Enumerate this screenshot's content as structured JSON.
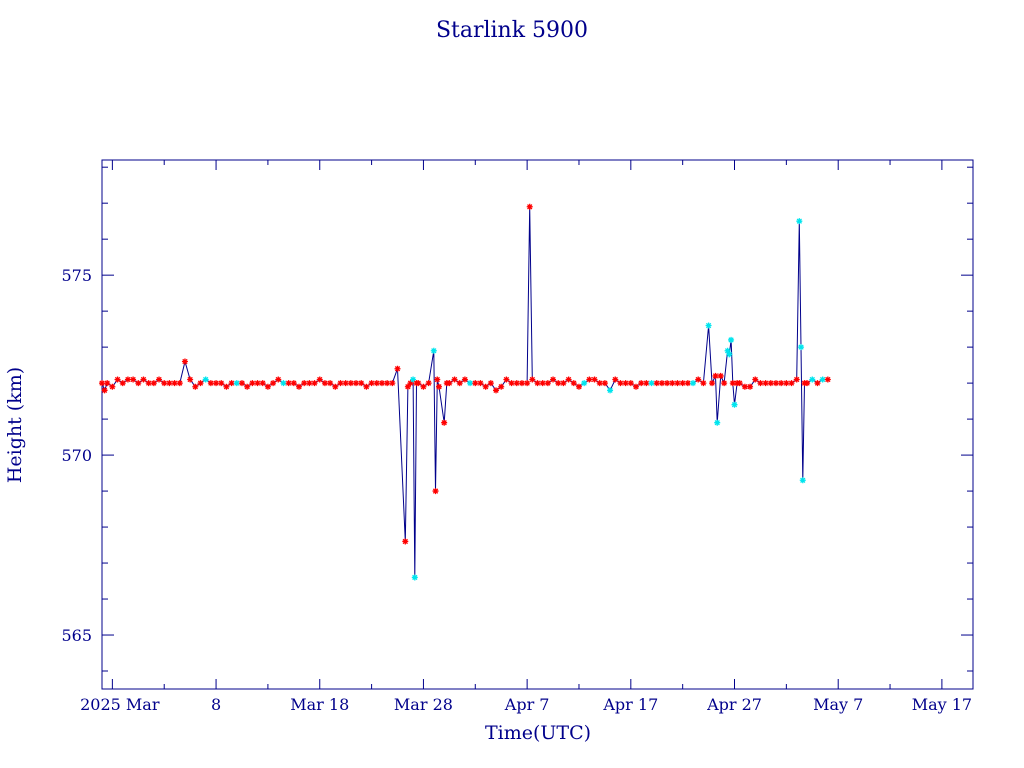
{
  "chart_data": {
    "type": "line",
    "title": "Starlink 5900",
    "xlabel": "Time(UTC)",
    "ylabel": "Height (km)",
    "xlim": [
      "2025-02-25",
      "2025-05-20"
    ],
    "ylim": [
      563.5,
      578.2
    ],
    "x_ticks": [
      {
        "x": "2025-03-01",
        "label": "2025 Mar  "
      },
      {
        "x": "2025-03-08",
        "label": "8"
      },
      {
        "x": "2025-03-18",
        "label": "Mar 18"
      },
      {
        "x": "2025-03-28",
        "label": "Mar 28"
      },
      {
        "x": "2025-04-07",
        "label": "Apr  7"
      },
      {
        "x": "2025-04-17",
        "label": "Apr 17"
      },
      {
        "x": "2025-04-27",
        "label": "Apr 27"
      },
      {
        "x": "2025-05-07",
        "label": "May  7"
      },
      {
        "x": "2025-05-17",
        "label": "May 17"
      }
    ],
    "y_ticks": [
      565,
      570,
      575
    ],
    "grid": false,
    "line_color": "#00008b",
    "marker_colors": {
      "red": "#ff0000",
      "cyan": "#00e5ee"
    },
    "series": [
      {
        "values": [
          {
            "x": "2025-02-25T00:00",
            "y": 572.0,
            "m": "red"
          },
          {
            "x": "2025-02-25T06:00",
            "y": 571.8,
            "m": "red"
          },
          {
            "x": "2025-02-25T12:00",
            "y": 572.0,
            "m": "red"
          },
          {
            "x": "2025-02-26T00:00",
            "y": 571.9,
            "m": "red"
          },
          {
            "x": "2025-02-26T12:00",
            "y": 572.1,
            "m": "red"
          },
          {
            "x": "2025-02-27T00:00",
            "y": 572.0,
            "m": "red"
          },
          {
            "x": "2025-02-27T12:00",
            "y": 572.1,
            "m": "red"
          },
          {
            "x": "2025-02-28T00:00",
            "y": 572.1,
            "m": "red"
          },
          {
            "x": "2025-02-28T12:00",
            "y": 572.0,
            "m": "red"
          },
          {
            "x": "2025-03-01T00:00",
            "y": 572.1,
            "m": "red"
          },
          {
            "x": "2025-03-01T12:00",
            "y": 572.0,
            "m": "red"
          },
          {
            "x": "2025-03-02T00:00",
            "y": 572.0,
            "m": "red"
          },
          {
            "x": "2025-03-02T12:00",
            "y": 572.1,
            "m": "red"
          },
          {
            "x": "2025-03-03T00:00",
            "y": 572.0,
            "m": "red"
          },
          {
            "x": "2025-03-03T12:00",
            "y": 572.0,
            "m": "red"
          },
          {
            "x": "2025-03-04T00:00",
            "y": 572.0,
            "m": "red"
          },
          {
            "x": "2025-03-04T12:00",
            "y": 572.0,
            "m": "red"
          },
          {
            "x": "2025-03-05T00:00",
            "y": 572.6,
            "m": "red"
          },
          {
            "x": "2025-03-05T12:00",
            "y": 572.1,
            "m": "red"
          },
          {
            "x": "2025-03-06T00:00",
            "y": 571.9,
            "m": "red"
          },
          {
            "x": "2025-03-06T12:00",
            "y": 572.0,
            "m": "red"
          },
          {
            "x": "2025-03-07T00:00",
            "y": 572.1,
            "m": "cyan"
          },
          {
            "x": "2025-03-07T12:00",
            "y": 572.0,
            "m": "red"
          },
          {
            "x": "2025-03-08T00:00",
            "y": 572.0,
            "m": "red"
          },
          {
            "x": "2025-03-08T12:00",
            "y": 572.0,
            "m": "red"
          },
          {
            "x": "2025-03-09T00:00",
            "y": 571.9,
            "m": "red"
          },
          {
            "x": "2025-03-09T12:00",
            "y": 572.0,
            "m": "red"
          },
          {
            "x": "2025-03-10T00:00",
            "y": 572.0,
            "m": "cyan"
          },
          {
            "x": "2025-03-10T12:00",
            "y": 572.0,
            "m": "red"
          },
          {
            "x": "2025-03-11T00:00",
            "y": 571.9,
            "m": "red"
          },
          {
            "x": "2025-03-11T12:00",
            "y": 572.0,
            "m": "red"
          },
          {
            "x": "2025-03-12T00:00",
            "y": 572.0,
            "m": "red"
          },
          {
            "x": "2025-03-12T12:00",
            "y": 572.0,
            "m": "red"
          },
          {
            "x": "2025-03-13T00:00",
            "y": 571.9,
            "m": "red"
          },
          {
            "x": "2025-03-13T12:00",
            "y": 572.0,
            "m": "red"
          },
          {
            "x": "2025-03-14T00:00",
            "y": 572.1,
            "m": "red"
          },
          {
            "x": "2025-03-14T12:00",
            "y": 572.0,
            "m": "cyan"
          },
          {
            "x": "2025-03-15T00:00",
            "y": 572.0,
            "m": "red"
          },
          {
            "x": "2025-03-15T12:00",
            "y": 572.0,
            "m": "red"
          },
          {
            "x": "2025-03-16T00:00",
            "y": 571.9,
            "m": "red"
          },
          {
            "x": "2025-03-16T12:00",
            "y": 572.0,
            "m": "red"
          },
          {
            "x": "2025-03-17T00:00",
            "y": 572.0,
            "m": "red"
          },
          {
            "x": "2025-03-17T12:00",
            "y": 572.0,
            "m": "red"
          },
          {
            "x": "2025-03-18T00:00",
            "y": 572.1,
            "m": "red"
          },
          {
            "x": "2025-03-18T12:00",
            "y": 572.0,
            "m": "red"
          },
          {
            "x": "2025-03-19T00:00",
            "y": 572.0,
            "m": "red"
          },
          {
            "x": "2025-03-19T12:00",
            "y": 571.9,
            "m": "red"
          },
          {
            "x": "2025-03-20T00:00",
            "y": 572.0,
            "m": "red"
          },
          {
            "x": "2025-03-20T12:00",
            "y": 572.0,
            "m": "red"
          },
          {
            "x": "2025-03-21T00:00",
            "y": 572.0,
            "m": "red"
          },
          {
            "x": "2025-03-21T12:00",
            "y": 572.0,
            "m": "red"
          },
          {
            "x": "2025-03-22T00:00",
            "y": 572.0,
            "m": "red"
          },
          {
            "x": "2025-03-22T12:00",
            "y": 571.9,
            "m": "red"
          },
          {
            "x": "2025-03-23T00:00",
            "y": 572.0,
            "m": "red"
          },
          {
            "x": "2025-03-23T12:00",
            "y": 572.0,
            "m": "red"
          },
          {
            "x": "2025-03-24T00:00",
            "y": 572.0,
            "m": "red"
          },
          {
            "x": "2025-03-24T12:00",
            "y": 572.0,
            "m": "red"
          },
          {
            "x": "2025-03-25T00:00",
            "y": 572.0,
            "m": "red"
          },
          {
            "x": "2025-03-25T12:00",
            "y": 572.4,
            "m": "red"
          },
          {
            "x": "2025-03-26T06:00",
            "y": 567.6,
            "m": "red"
          },
          {
            "x": "2025-03-26T12:00",
            "y": 571.9,
            "m": "red"
          },
          {
            "x": "2025-03-26T18:00",
            "y": 572.0,
            "m": "red"
          },
          {
            "x": "2025-03-27T00:00",
            "y": 572.1,
            "m": "cyan"
          },
          {
            "x": "2025-03-27T04:00",
            "y": 566.6,
            "m": "cyan"
          },
          {
            "x": "2025-03-27T08:00",
            "y": 572.0,
            "m": "red"
          },
          {
            "x": "2025-03-27T12:00",
            "y": 572.0,
            "m": "red"
          },
          {
            "x": "2025-03-28T00:00",
            "y": 571.9,
            "m": "red"
          },
          {
            "x": "2025-03-28T12:00",
            "y": 572.0,
            "m": "red"
          },
          {
            "x": "2025-03-29T00:00",
            "y": 572.9,
            "m": "cyan"
          },
          {
            "x": "2025-03-29T04:00",
            "y": 569.0,
            "m": "red"
          },
          {
            "x": "2025-03-29T08:00",
            "y": 572.1,
            "m": "red"
          },
          {
            "x": "2025-03-29T12:00",
            "y": 571.9,
            "m": "red"
          },
          {
            "x": "2025-03-30T00:00",
            "y": 570.9,
            "m": "red"
          },
          {
            "x": "2025-03-30T06:00",
            "y": 572.0,
            "m": "red"
          },
          {
            "x": "2025-03-30T12:00",
            "y": 572.0,
            "m": "red"
          },
          {
            "x": "2025-03-31T00:00",
            "y": 572.1,
            "m": "red"
          },
          {
            "x": "2025-03-31T12:00",
            "y": 572.0,
            "m": "red"
          },
          {
            "x": "2025-04-01T00:00",
            "y": 572.1,
            "m": "red"
          },
          {
            "x": "2025-04-01T12:00",
            "y": 572.0,
            "m": "cyan"
          },
          {
            "x": "2025-04-02T00:00",
            "y": 572.0,
            "m": "red"
          },
          {
            "x": "2025-04-02T12:00",
            "y": 572.0,
            "m": "red"
          },
          {
            "x": "2025-04-03T00:00",
            "y": 571.9,
            "m": "red"
          },
          {
            "x": "2025-04-03T12:00",
            "y": 572.0,
            "m": "red"
          },
          {
            "x": "2025-04-04T00:00",
            "y": 571.8,
            "m": "red"
          },
          {
            "x": "2025-04-04T12:00",
            "y": 571.9,
            "m": "red"
          },
          {
            "x": "2025-04-05T00:00",
            "y": 572.1,
            "m": "red"
          },
          {
            "x": "2025-04-05T12:00",
            "y": 572.0,
            "m": "red"
          },
          {
            "x": "2025-04-06T00:00",
            "y": 572.0,
            "m": "red"
          },
          {
            "x": "2025-04-06T12:00",
            "y": 572.0,
            "m": "red"
          },
          {
            "x": "2025-04-07T00:00",
            "y": 572.0,
            "m": "red"
          },
          {
            "x": "2025-04-07T06:00",
            "y": 576.9,
            "m": "red"
          },
          {
            "x": "2025-04-07T12:00",
            "y": 572.1,
            "m": "red"
          },
          {
            "x": "2025-04-08T00:00",
            "y": 572.0,
            "m": "red"
          },
          {
            "x": "2025-04-08T12:00",
            "y": 572.0,
            "m": "red"
          },
          {
            "x": "2025-04-09T00:00",
            "y": 572.0,
            "m": "red"
          },
          {
            "x": "2025-04-09T12:00",
            "y": 572.1,
            "m": "red"
          },
          {
            "x": "2025-04-10T00:00",
            "y": 572.0,
            "m": "red"
          },
          {
            "x": "2025-04-10T12:00",
            "y": 572.0,
            "m": "red"
          },
          {
            "x": "2025-04-11T00:00",
            "y": 572.1,
            "m": "red"
          },
          {
            "x": "2025-04-11T12:00",
            "y": 572.0,
            "m": "red"
          },
          {
            "x": "2025-04-12T00:00",
            "y": 571.9,
            "m": "red"
          },
          {
            "x": "2025-04-12T12:00",
            "y": 572.0,
            "m": "cyan"
          },
          {
            "x": "2025-04-13T00:00",
            "y": 572.1,
            "m": "red"
          },
          {
            "x": "2025-04-13T12:00",
            "y": 572.1,
            "m": "red"
          },
          {
            "x": "2025-04-14T00:00",
            "y": 572.0,
            "m": "red"
          },
          {
            "x": "2025-04-14T12:00",
            "y": 572.0,
            "m": "red"
          },
          {
            "x": "2025-04-15T00:00",
            "y": 571.8,
            "m": "cyan"
          },
          {
            "x": "2025-04-15T12:00",
            "y": 572.1,
            "m": "red"
          },
          {
            "x": "2025-04-16T00:00",
            "y": 572.0,
            "m": "red"
          },
          {
            "x": "2025-04-16T12:00",
            "y": 572.0,
            "m": "red"
          },
          {
            "x": "2025-04-17T00:00",
            "y": 572.0,
            "m": "red"
          },
          {
            "x": "2025-04-17T12:00",
            "y": 571.9,
            "m": "red"
          },
          {
            "x": "2025-04-18T00:00",
            "y": 572.0,
            "m": "red"
          },
          {
            "x": "2025-04-18T12:00",
            "y": 572.0,
            "m": "red"
          },
          {
            "x": "2025-04-19T00:00",
            "y": 572.0,
            "m": "cyan"
          },
          {
            "x": "2025-04-19T12:00",
            "y": 572.0,
            "m": "red"
          },
          {
            "x": "2025-04-20T00:00",
            "y": 572.0,
            "m": "red"
          },
          {
            "x": "2025-04-20T12:00",
            "y": 572.0,
            "m": "red"
          },
          {
            "x": "2025-04-21T00:00",
            "y": 572.0,
            "m": "red"
          },
          {
            "x": "2025-04-21T12:00",
            "y": 572.0,
            "m": "red"
          },
          {
            "x": "2025-04-22T00:00",
            "y": 572.0,
            "m": "red"
          },
          {
            "x": "2025-04-22T12:00",
            "y": 572.0,
            "m": "red"
          },
          {
            "x": "2025-04-23T00:00",
            "y": 572.0,
            "m": "cyan"
          },
          {
            "x": "2025-04-23T12:00",
            "y": 572.1,
            "m": "red"
          },
          {
            "x": "2025-04-24T00:00",
            "y": 572.0,
            "m": "red"
          },
          {
            "x": "2025-04-24T12:00",
            "y": 573.6,
            "m": "cyan"
          },
          {
            "x": "2025-04-24T20:00",
            "y": 572.0,
            "m": "red"
          },
          {
            "x": "2025-04-25T04:00",
            "y": 572.2,
            "m": "red"
          },
          {
            "x": "2025-04-25T08:00",
            "y": 570.9,
            "m": "cyan"
          },
          {
            "x": "2025-04-25T16:00",
            "y": 572.2,
            "m": "red"
          },
          {
            "x": "2025-04-26T00:00",
            "y": 572.0,
            "m": "red"
          },
          {
            "x": "2025-04-26T08:00",
            "y": 572.9,
            "m": "cyan"
          },
          {
            "x": "2025-04-26T12:00",
            "y": 572.8,
            "m": "cyan"
          },
          {
            "x": "2025-04-26T16:00",
            "y": 573.2,
            "m": "cyan"
          },
          {
            "x": "2025-04-26T20:00",
            "y": 572.0,
            "m": "red"
          },
          {
            "x": "2025-04-27T00:00",
            "y": 571.4,
            "m": "cyan"
          },
          {
            "x": "2025-04-27T06:00",
            "y": 572.0,
            "m": "red"
          },
          {
            "x": "2025-04-27T12:00",
            "y": 572.0,
            "m": "red"
          },
          {
            "x": "2025-04-28T00:00",
            "y": 571.9,
            "m": "red"
          },
          {
            "x": "2025-04-28T12:00",
            "y": 571.9,
            "m": "red"
          },
          {
            "x": "2025-04-29T00:00",
            "y": 572.1,
            "m": "red"
          },
          {
            "x": "2025-04-29T12:00",
            "y": 572.0,
            "m": "red"
          },
          {
            "x": "2025-04-30T00:00",
            "y": 572.0,
            "m": "red"
          },
          {
            "x": "2025-04-30T12:00",
            "y": 572.0,
            "m": "red"
          },
          {
            "x": "2025-05-01T00:00",
            "y": 572.0,
            "m": "red"
          },
          {
            "x": "2025-05-01T12:00",
            "y": 572.0,
            "m": "red"
          },
          {
            "x": "2025-05-02T00:00",
            "y": 572.0,
            "m": "red"
          },
          {
            "x": "2025-05-02T12:00",
            "y": 572.0,
            "m": "red"
          },
          {
            "x": "2025-05-03T00:00",
            "y": 572.1,
            "m": "red"
          },
          {
            "x": "2025-05-03T06:00",
            "y": 576.5,
            "m": "cyan"
          },
          {
            "x": "2025-05-03T10:00",
            "y": 573.0,
            "m": "cyan"
          },
          {
            "x": "2025-05-03T14:00",
            "y": 569.3,
            "m": "cyan"
          },
          {
            "x": "2025-05-03T18:00",
            "y": 572.0,
            "m": "red"
          },
          {
            "x": "2025-05-04T00:00",
            "y": 572.0,
            "m": "red"
          },
          {
            "x": "2025-05-04T12:00",
            "y": 572.1,
            "m": "cyan"
          },
          {
            "x": "2025-05-05T00:00",
            "y": 572.0,
            "m": "red"
          },
          {
            "x": "2025-05-05T12:00",
            "y": 572.1,
            "m": "cyan"
          },
          {
            "x": "2025-05-06T00:00",
            "y": 572.1,
            "m": "red"
          }
        ]
      }
    ]
  }
}
